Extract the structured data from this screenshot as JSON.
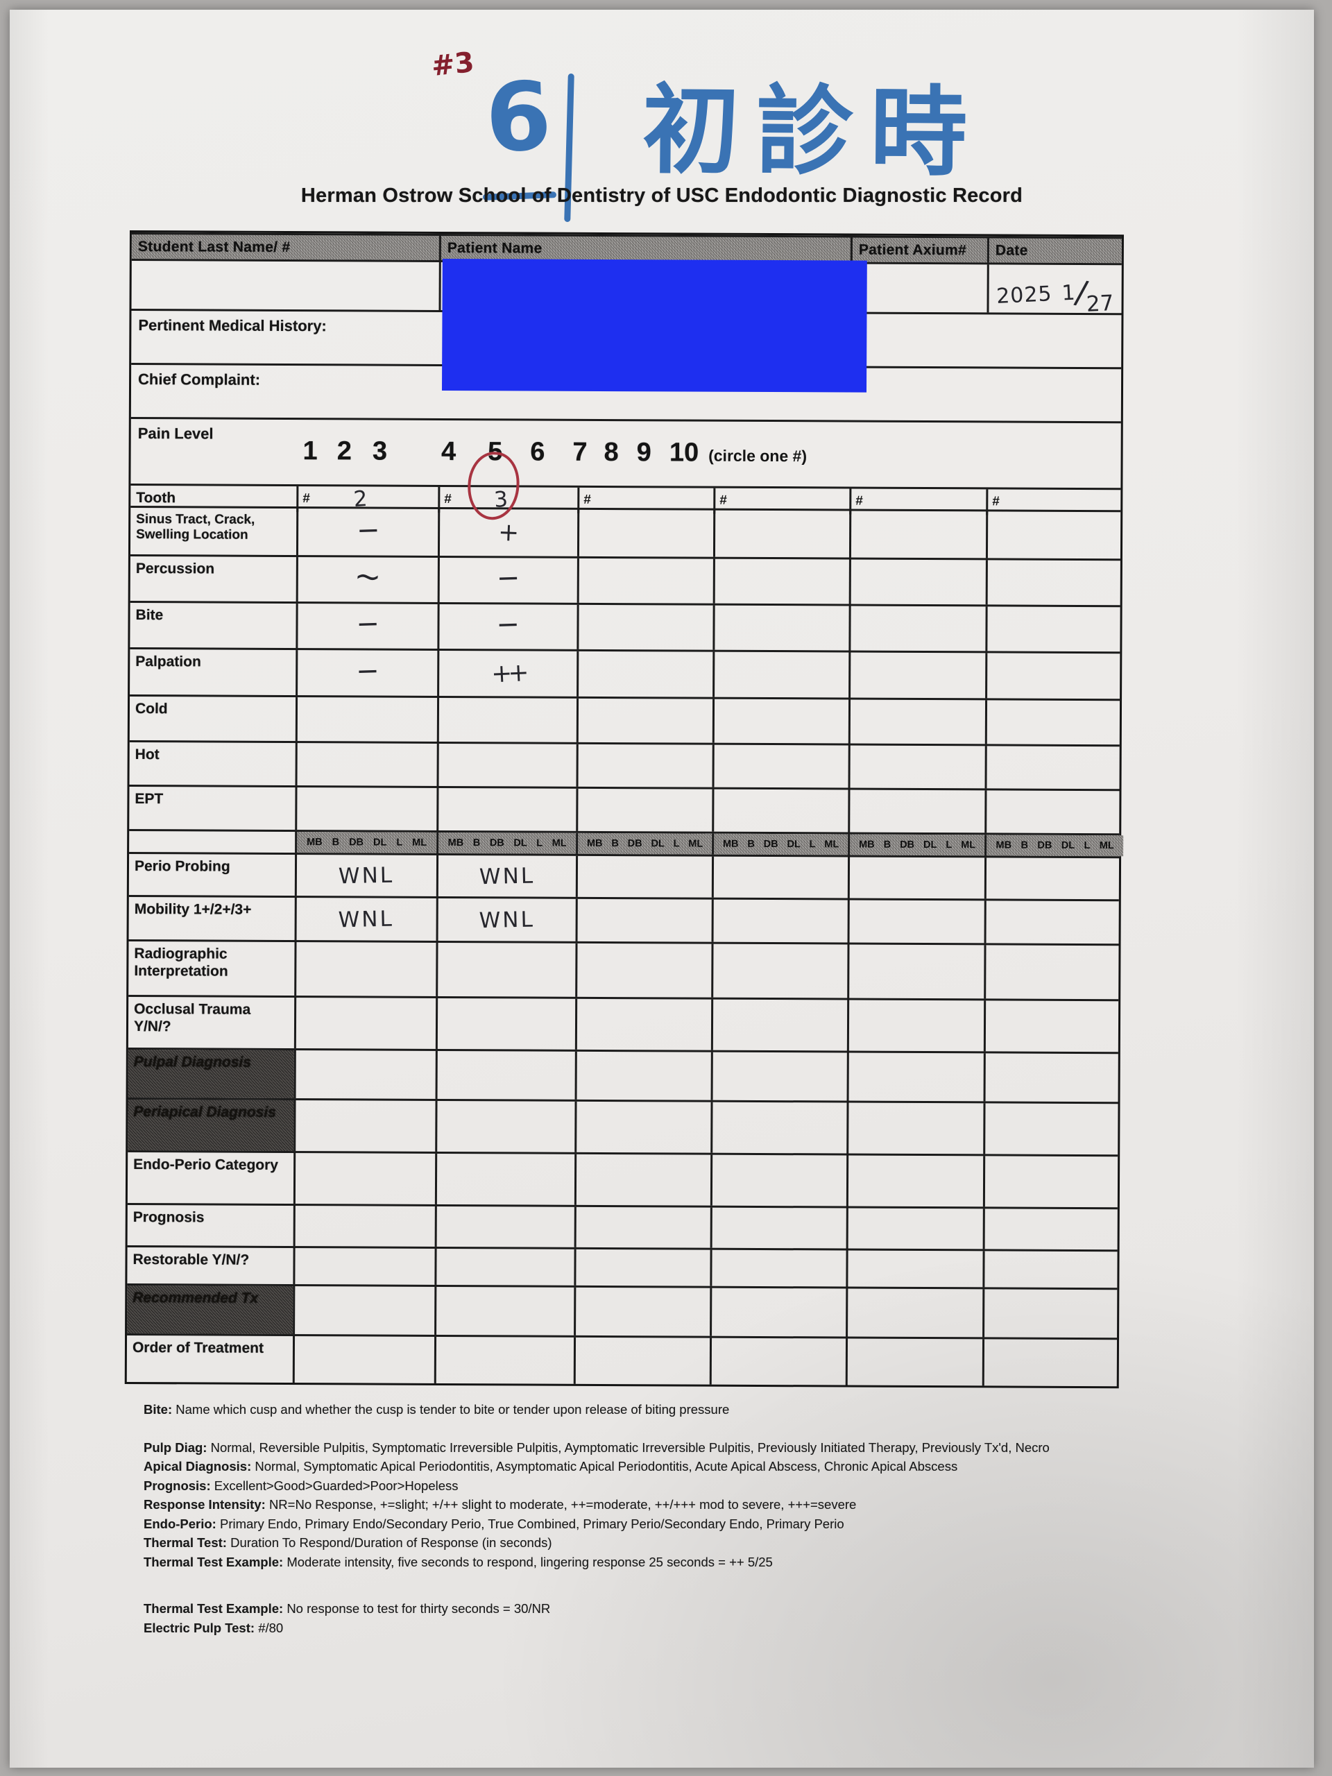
{
  "annotations": {
    "case_number": "#3",
    "tooth_quadrant_digit": "6",
    "visit_note": "初診時"
  },
  "title": "Herman Ostrow School of Dentistry of USC Endodontic Diagnostic Record",
  "header_row": {
    "student": "Student Last Name/ #",
    "patient": "Patient Name",
    "axium": "Patient Axium#",
    "date": "Date"
  },
  "date_written": {
    "year": "2025",
    "month": "1",
    "separator": "/",
    "day": "27",
    "full": "2025 1/27"
  },
  "form": {
    "medical_history_label": "Pertinent Medical History:",
    "chief_complaint_label": "Chief Complaint:",
    "pain": {
      "label": "Pain Level",
      "numbers": [
        "1",
        "2",
        "3",
        "4",
        "5",
        "6",
        "7",
        "8",
        "9",
        "10"
      ],
      "note": "(circle one #)",
      "circled_value": "5"
    }
  },
  "tooth_table": {
    "tooth_label": "Tooth",
    "hash": "#",
    "teeth": [
      "2",
      "3",
      "",
      "",
      "",
      ""
    ],
    "circled_tooth": "3",
    "surface_labels": [
      "MB",
      "B",
      "DB",
      "DL",
      "L",
      "ML"
    ],
    "rows_top": [
      {
        "id": "sinus",
        "label": "Sinus Tract, Crack, Swelling Location",
        "values": [
          "−",
          "+",
          "",
          "",
          "",
          ""
        ]
      },
      {
        "id": "percussion",
        "label": "Percussion",
        "values": [
          "~",
          "−",
          "",
          "",
          "",
          ""
        ]
      },
      {
        "id": "bite",
        "label": "Bite",
        "values": [
          "−",
          "−",
          "",
          "",
          "",
          ""
        ]
      },
      {
        "id": "palpation",
        "label": "Palpation",
        "values": [
          "−",
          "++",
          "",
          "",
          "",
          ""
        ]
      },
      {
        "id": "cold",
        "label": "Cold",
        "values": [
          "",
          "",
          "",
          "",
          "",
          ""
        ]
      },
      {
        "id": "hot",
        "label": "Hot",
        "values": [
          "",
          "",
          "",
          "",
          "",
          ""
        ]
      },
      {
        "id": "ept",
        "label": "EPT",
        "values": [
          "",
          "",
          "",
          "",
          "",
          ""
        ]
      }
    ],
    "rows_bottom": [
      {
        "id": "perio",
        "label": "Perio Probing",
        "values": [
          "WNL",
          "WNL",
          "",
          "",
          "",
          ""
        ],
        "handwritten": true
      },
      {
        "id": "mobility",
        "label": "Mobility 1+/2+/3+",
        "values": [
          "WNL",
          "WNL",
          "",
          "",
          "",
          ""
        ],
        "handwritten": true
      },
      {
        "id": "radiographic",
        "label": "Radiographic Interpretation",
        "values": [
          "",
          "",
          "",
          "",
          "",
          ""
        ]
      },
      {
        "id": "occlusal",
        "label": "Occlusal Trauma Y/N/?",
        "values": [
          "",
          "",
          "",
          "",
          "",
          ""
        ]
      },
      {
        "id": "pulpal",
        "label": "Pulpal Diagnosis",
        "values": [
          "",
          "",
          "",
          "",
          "",
          ""
        ],
        "dark": true
      },
      {
        "id": "periapical",
        "label": "Periapical Diagnosis",
        "values": [
          "",
          "",
          "",
          "",
          "",
          ""
        ],
        "dark": true
      },
      {
        "id": "endoperio",
        "label": "Endo-Perio Category",
        "values": [
          "",
          "",
          "",
          "",
          "",
          ""
        ]
      },
      {
        "id": "prognosis",
        "label": "Prognosis",
        "values": [
          "",
          "",
          "",
          "",
          "",
          ""
        ]
      },
      {
        "id": "restorable",
        "label": "Restorable Y/N/?",
        "values": [
          "",
          "",
          "",
          "",
          "",
          ""
        ]
      },
      {
        "id": "recommended",
        "label": "Recommended Tx",
        "values": [
          "",
          "",
          "",
          "",
          "",
          ""
        ],
        "dark": true
      },
      {
        "id": "order",
        "label": "Order of Treatment",
        "values": [
          "",
          "",
          "",
          "",
          "",
          ""
        ]
      }
    ]
  },
  "footnotes": [
    {
      "label": "Bite:",
      "text": "Name which cusp and whether the cusp is tender to bite or tender upon release of biting pressure"
    },
    {
      "label": "Pulp Diag:",
      "text": "Normal, Reversible Pulpitis, Symptomatic Irreversible Pulpitis, Aymptomatic Irreversible Pulpitis, Previously Initiated Therapy, Previously Tx'd, Necro"
    },
    {
      "label": "Apical Diagnosis:",
      "text": "Normal, Symptomatic Apical Periodontitis, Asymptomatic Apical Periodontitis, Acute Apical Abscess, Chronic Apical Abscess"
    },
    {
      "label": "Prognosis:",
      "text": "Excellent>Good>Guarded>Poor>Hopeless"
    },
    {
      "label": "Response Intensity:",
      "text": "NR=No Response, +=slight; +/++ slight to moderate, ++=moderate, ++/+++ mod to severe, +++=severe"
    },
    {
      "label": "Endo-Perio:",
      "text": "Primary Endo, Primary Endo/Secondary Perio, True Combined, Primary Perio/Secondary Endo, Primary Perio"
    },
    {
      "label": "Thermal Test:",
      "text": "Duration To Respond/Duration of Response (in seconds)"
    },
    {
      "label": "Thermal Test Example:",
      "text": "Moderate intensity, five seconds to respond, lingering response 25 seconds = ++ 5/25"
    },
    {
      "label": "Thermal Test Example:",
      "text": "No response to test for thirty seconds = 30/NR"
    },
    {
      "label": "Electric Pulp Test:",
      "text": "#/80"
    }
  ],
  "colors": {
    "redaction_blue": "#1e2ff0",
    "marker_blue": "#3a73b4",
    "pen_red": "#84202e",
    "circle_red": "#a83441",
    "ink": "#26262c"
  }
}
